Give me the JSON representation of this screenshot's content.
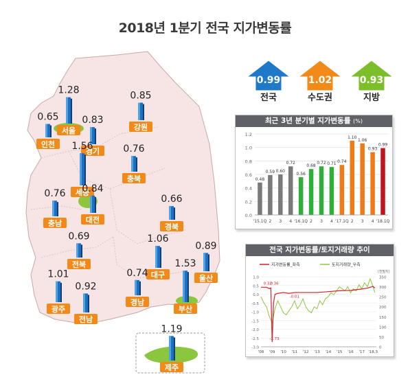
{
  "title": "2018년 1분기 전국 지가변동률",
  "summary": [
    {
      "value": "0.99",
      "label": "전국",
      "color": "#1f78c8"
    },
    {
      "value": "1.02",
      "label": "수도권",
      "color": "#f28a1a"
    },
    {
      "value": "0.93",
      "label": "지방",
      "color": "#7cbf2a"
    }
  ],
  "regions": [
    {
      "name": "서울",
      "value": 1.28
    },
    {
      "name": "인천",
      "value": 0.65
    },
    {
      "name": "경기",
      "value": 0.83
    },
    {
      "name": "강원",
      "value": 0.85
    },
    {
      "name": "세종",
      "value": 1.56
    },
    {
      "name": "충북",
      "value": 0.76
    },
    {
      "name": "충남",
      "value": 0.76
    },
    {
      "name": "대전",
      "value": 0.84
    },
    {
      "name": "경북",
      "value": 0.66
    },
    {
      "name": "전북",
      "value": 0.69
    },
    {
      "name": "대구",
      "value": 1.06
    },
    {
      "name": "울산",
      "value": 0.89
    },
    {
      "name": "광주",
      "value": 1.01
    },
    {
      "name": "경남",
      "value": 0.74
    },
    {
      "name": "부산",
      "value": 1.53
    },
    {
      "name": "전남",
      "value": 0.92
    },
    {
      "name": "제주",
      "value": 1.19
    }
  ],
  "chart_data": [
    {
      "type": "bar",
      "title": "최근 3년 분기별 지가변동률",
      "unit": "(%)",
      "ylim": [
        0,
        1.2
      ],
      "yticks": [
        "0.0",
        "0.2",
        "0.4",
        "0.6",
        "0.8",
        "1.0",
        "1.2"
      ],
      "categories": [
        "'15.1Q",
        "2",
        "3",
        "4",
        "'16.1Q",
        "2",
        "3",
        "4",
        "'17.1Q",
        "2",
        "3",
        "4",
        "'18.1Q"
      ],
      "values": [
        0.48,
        0.59,
        0.6,
        0.72,
        0.56,
        0.68,
        0.72,
        0.71,
        0.74,
        1.1,
        1.06,
        0.93,
        0.99
      ],
      "value_labels": [
        "0.48",
        "0.59",
        "0.60",
        "0.72",
        "0.56",
        "0.68",
        "0.72",
        "0.71",
        "0.74",
        "1.10",
        "1.06",
        "0.93",
        "0.99"
      ],
      "bar_colors": [
        "#7a7a7a",
        "#7a7a7a",
        "#7a7a7a",
        "#7a7a7a",
        "#2fae3a",
        "#2fae3a",
        "#2fae3a",
        "#2fae3a",
        "#f07a17",
        "#f07a17",
        "#f07a17",
        "#f07a17",
        "#c0161b"
      ],
      "grid": true
    },
    {
      "type": "line",
      "title": "전국 지가변동률/토지거래량 추이",
      "series": [
        {
          "name": "지가변동률_좌측",
          "color": "#d41f26",
          "x": [
            2008.0,
            2008.5,
            2008.75,
            2008.88,
            2009.0,
            2009.12,
            2009.25,
            2009.5,
            2010.0,
            2010.5,
            2011.0,
            2012.0,
            2013.0,
            2014.0,
            2015.0,
            2016.0,
            2017.0,
            2017.5,
            2018.0,
            2018.17
          ],
          "y": [
            0.4,
            0.4,
            0.32,
            0.36,
            -2.73,
            -0.5,
            0.0,
            0.05,
            0.1,
            0.05,
            0.1,
            0.1,
            0.1,
            0.15,
            0.2,
            0.22,
            0.3,
            0.35,
            0.45,
            0.35
          ]
        },
        {
          "name": "토지거래량_우측",
          "color": "#8cc63f",
          "x": [
            2008.0,
            2008.25,
            2008.5,
            2008.75,
            2009.0,
            2009.25,
            2009.5,
            2009.75,
            2010.0,
            2010.25,
            2010.5,
            2010.75,
            2011.0,
            2011.25,
            2011.5,
            2011.75,
            2012.0,
            2012.25,
            2012.5,
            2012.75,
            2013.0,
            2013.25,
            2013.5,
            2013.75,
            2014.0,
            2014.25,
            2014.5,
            2014.75,
            2015.0,
            2015.25,
            2015.5,
            2015.75,
            2016.0,
            2016.25,
            2016.5,
            2016.75,
            2017.0,
            2017.25,
            2017.5,
            2017.75,
            2018.0,
            2018.17
          ],
          "y": [
            250,
            220,
            200,
            150,
            120,
            190,
            230,
            200,
            170,
            160,
            180,
            200,
            230,
            190,
            210,
            240,
            200,
            180,
            170,
            200,
            190,
            230,
            210,
            240,
            250,
            270,
            260,
            280,
            300,
            290,
            280,
            300,
            270,
            290,
            280,
            310,
            290,
            320,
            300,
            340,
            300,
            270
          ]
        }
      ],
      "annotations": [
        "0.32",
        "0.36",
        "-2.73",
        "-0.01"
      ],
      "y_left": {
        "ylim": [
          -3.0,
          1.0
        ],
        "ticks": [
          "1.0",
          "0.5",
          "0.0",
          "-0.5",
          "-1.0",
          "-1.5",
          "-2.0",
          "-2.5",
          "-3.0"
        ]
      },
      "y_right": {
        "label": "(천필지)",
        "ylim": [
          0,
          350
        ],
        "ticks": [
          "350",
          "300",
          "250",
          "200",
          "150",
          "100",
          "50",
          "0"
        ]
      },
      "xticks": [
        "'08",
        "'09",
        "'10",
        "'11",
        "'12",
        "'13",
        "'14",
        "'15",
        "'16",
        "'17",
        "'18.3"
      ],
      "grid": true
    }
  ]
}
